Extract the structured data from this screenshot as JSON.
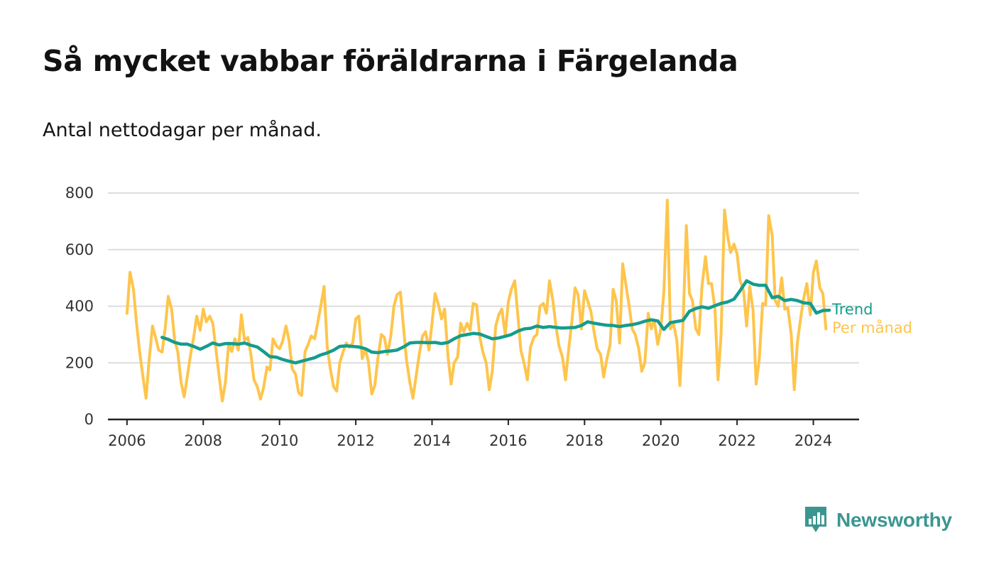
{
  "header": {
    "title": "Så mycket vabbar föräldrarna i Färgelanda",
    "subtitle": "Antal nettodagar per månad."
  },
  "brand": {
    "name": "Newsworthy",
    "icon": "newsworthy-logo-icon"
  },
  "colors": {
    "trend": "#159c8d",
    "monthly": "#fec54c",
    "grid": "#dddddd",
    "axis": "#222222"
  },
  "chart_data": {
    "type": "line",
    "title": "Så mycket vabbar föräldrarna i Färgelanda",
    "subtitle": "Antal nettodagar per månad.",
    "xlabel": "",
    "ylabel": "",
    "xlim": [
      2005.5,
      2025.2
    ],
    "ylim": [
      0,
      800
    ],
    "yticks": [
      0,
      200,
      400,
      600,
      800
    ],
    "xticks": [
      2006,
      2008,
      2010,
      2012,
      2014,
      2016,
      2018,
      2020,
      2022,
      2024
    ],
    "grid": true,
    "legend": "direct labels at right end of lines",
    "series": [
      {
        "name": "Trend",
        "color": "#159c8d",
        "x": [
          2006.92,
          2007.08,
          2007.25,
          2007.42,
          2007.58,
          2007.75,
          2007.92,
          2008.08,
          2008.25,
          2008.42,
          2008.58,
          2008.75,
          2008.92,
          2009.08,
          2009.25,
          2009.42,
          2009.58,
          2009.75,
          2009.92,
          2010.08,
          2010.25,
          2010.42,
          2010.58,
          2010.75,
          2010.92,
          2011.08,
          2011.25,
          2011.42,
          2011.58,
          2011.75,
          2011.92,
          2012.08,
          2012.25,
          2012.42,
          2012.58,
          2012.75,
          2012.92,
          2013.08,
          2013.25,
          2013.42,
          2013.58,
          2013.75,
          2013.92,
          2014.08,
          2014.25,
          2014.42,
          2014.58,
          2014.75,
          2014.92,
          2015.08,
          2015.25,
          2015.42,
          2015.58,
          2015.75,
          2015.92,
          2016.08,
          2016.25,
          2016.42,
          2016.58,
          2016.75,
          2016.92,
          2017.08,
          2017.25,
          2017.42,
          2017.58,
          2017.75,
          2017.92,
          2018.08,
          2018.25,
          2018.42,
          2018.58,
          2018.75,
          2018.92,
          2019.08,
          2019.25,
          2019.42,
          2019.58,
          2019.75,
          2019.92,
          2020.08,
          2020.25,
          2020.42,
          2020.58,
          2020.75,
          2020.92,
          2021.08,
          2021.25,
          2021.42,
          2021.58,
          2021.75,
          2021.92,
          2022.08,
          2022.25,
          2022.42,
          2022.58,
          2022.75,
          2022.92,
          2023.08,
          2023.25,
          2023.42,
          2023.58,
          2023.75,
          2023.92,
          2024.08,
          2024.25,
          2024.42
        ],
        "values": [
          290,
          283,
          272,
          266,
          266,
          258,
          248,
          258,
          270,
          263,
          268,
          268,
          266,
          270,
          262,
          256,
          240,
          222,
          220,
          212,
          206,
          200,
          206,
          212,
          218,
          228,
          235,
          245,
          258,
          260,
          258,
          256,
          250,
          238,
          236,
          240,
          242,
          245,
          256,
          270,
          272,
          272,
          271,
          272,
          268,
          272,
          285,
          296,
          300,
          304,
          302,
          293,
          285,
          288,
          294,
          300,
          312,
          320,
          322,
          330,
          325,
          328,
          325,
          323,
          324,
          325,
          332,
          345,
          340,
          336,
          333,
          332,
          328,
          332,
          335,
          340,
          347,
          352,
          348,
          318,
          342,
          346,
          350,
          382,
          392,
          398,
          393,
          402,
          410,
          415,
          425,
          455,
          490,
          478,
          474,
          474,
          430,
          435,
          420,
          424,
          420,
          412,
          410,
          376,
          385,
          386
        ]
      },
      {
        "name": "Per månad",
        "color": "#fec54c",
        "x": [
          2006.0,
          2006.08,
          2006.17,
          2006.25,
          2006.33,
          2006.42,
          2006.5,
          2006.58,
          2006.67,
          2006.75,
          2006.83,
          2006.92,
          2007.0,
          2007.08,
          2007.17,
          2007.25,
          2007.33,
          2007.42,
          2007.5,
          2007.58,
          2007.67,
          2007.75,
          2007.83,
          2007.92,
          2008.0,
          2008.08,
          2008.17,
          2008.25,
          2008.33,
          2008.42,
          2008.5,
          2008.58,
          2008.67,
          2008.75,
          2008.83,
          2008.92,
          2009.0,
          2009.08,
          2009.17,
          2009.25,
          2009.33,
          2009.42,
          2009.5,
          2009.58,
          2009.67,
          2009.75,
          2009.83,
          2009.92,
          2010.0,
          2010.08,
          2010.17,
          2010.25,
          2010.33,
          2010.42,
          2010.5,
          2010.58,
          2010.67,
          2010.75,
          2010.83,
          2010.92,
          2011.0,
          2011.08,
          2011.17,
          2011.25,
          2011.33,
          2011.42,
          2011.5,
          2011.58,
          2011.67,
          2011.75,
          2011.83,
          2011.92,
          2012.0,
          2012.08,
          2012.17,
          2012.25,
          2012.33,
          2012.42,
          2012.5,
          2012.58,
          2012.67,
          2012.75,
          2012.83,
          2012.92,
          2013.0,
          2013.08,
          2013.17,
          2013.25,
          2013.33,
          2013.42,
          2013.5,
          2013.58,
          2013.67,
          2013.75,
          2013.83,
          2013.92,
          2014.0,
          2014.08,
          2014.17,
          2014.25,
          2014.33,
          2014.42,
          2014.5,
          2014.58,
          2014.67,
          2014.75,
          2014.83,
          2014.92,
          2015.0,
          2015.08,
          2015.17,
          2015.25,
          2015.33,
          2015.42,
          2015.5,
          2015.58,
          2015.67,
          2015.75,
          2015.83,
          2015.92,
          2016.0,
          2016.08,
          2016.17,
          2016.25,
          2016.33,
          2016.42,
          2016.5,
          2016.58,
          2016.67,
          2016.75,
          2016.83,
          2016.92,
          2017.0,
          2017.08,
          2017.17,
          2017.25,
          2017.33,
          2017.42,
          2017.5,
          2017.58,
          2017.67,
          2017.75,
          2017.83,
          2017.92,
          2018.0,
          2018.08,
          2018.17,
          2018.25,
          2018.33,
          2018.42,
          2018.5,
          2018.58,
          2018.67,
          2018.75,
          2018.83,
          2018.92,
          2019.0,
          2019.08,
          2019.17,
          2019.25,
          2019.33,
          2019.42,
          2019.5,
          2019.58,
          2019.67,
          2019.75,
          2019.83,
          2019.92,
          2020.0,
          2020.08,
          2020.17,
          2020.25,
          2020.33,
          2020.42,
          2020.5,
          2020.58,
          2020.67,
          2020.75,
          2020.83,
          2020.92,
          2021.0,
          2021.08,
          2021.17,
          2021.25,
          2021.33,
          2021.42,
          2021.5,
          2021.58,
          2021.67,
          2021.75,
          2021.83,
          2021.92,
          2022.0,
          2022.08,
          2022.17,
          2022.25,
          2022.33,
          2022.42,
          2022.5,
          2022.58,
          2022.67,
          2022.75,
          2022.83,
          2022.92,
          2023.0,
          2023.08,
          2023.17,
          2023.25,
          2023.33,
          2023.42,
          2023.5,
          2023.58,
          2023.67,
          2023.75,
          2023.83,
          2023.92,
          2024.0,
          2024.08,
          2024.17,
          2024.25,
          2024.33
        ],
        "values": [
          375,
          520,
          460,
          340,
          240,
          150,
          75,
          210,
          330,
          290,
          245,
          238,
          320,
          435,
          390,
          280,
          240,
          130,
          80,
          150,
          230,
          290,
          365,
          315,
          390,
          345,
          365,
          340,
          250,
          150,
          65,
          130,
          270,
          240,
          285,
          245,
          370,
          280,
          290,
          230,
          140,
          115,
          72,
          110,
          185,
          175,
          285,
          260,
          250,
          275,
          330,
          280,
          180,
          160,
          95,
          85,
          240,
          265,
          295,
          285,
          340,
          400,
          470,
          260,
          180,
          115,
          100,
          200,
          240,
          270,
          255,
          270,
          355,
          365,
          215,
          250,
          205,
          90,
          120,
          215,
          300,
          290,
          230,
          295,
          400,
          440,
          450,
          330,
          210,
          130,
          75,
          150,
          235,
          295,
          310,
          245,
          340,
          445,
          405,
          355,
          390,
          220,
          125,
          200,
          220,
          340,
          310,
          340,
          315,
          410,
          405,
          295,
          240,
          200,
          105,
          170,
          330,
          370,
          390,
          300,
          415,
          460,
          490,
          370,
          245,
          195,
          140,
          255,
          290,
          300,
          400,
          410,
          375,
          490,
          420,
          330,
          260,
          220,
          140,
          245,
          350,
          465,
          440,
          320,
          455,
          420,
          380,
          310,
          250,
          230,
          150,
          210,
          265,
          460,
          420,
          270,
          550,
          480,
          400,
          320,
          300,
          250,
          170,
          200,
          375,
          320,
          350,
          265,
          320,
          450,
          775,
          320,
          340,
          280,
          120,
          330,
          685,
          445,
          420,
          320,
          300,
          470,
          575,
          480,
          480,
          390,
          140,
          300,
          740,
          650,
          590,
          620,
          585,
          490,
          455,
          330,
          470,
          385,
          125,
          210,
          410,
          405,
          720,
          650,
          420,
          400,
          500,
          390,
          395,
          300,
          105,
          270,
          360,
          430,
          480,
          370,
          520,
          560,
          465,
          445,
          320
        ]
      }
    ]
  }
}
